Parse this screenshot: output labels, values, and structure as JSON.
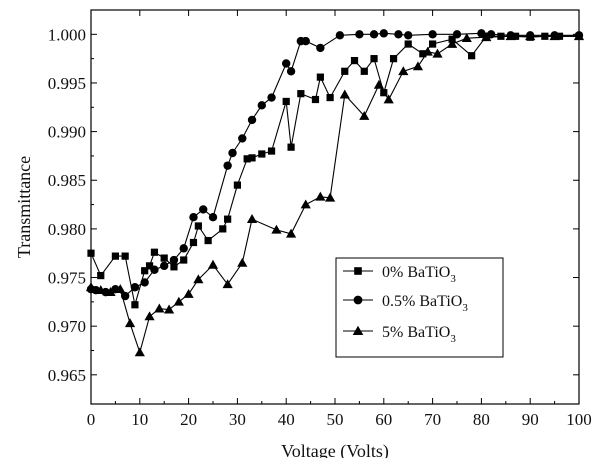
{
  "chart_data": {
    "type": "line",
    "xlabel": "Voltage (Volts)",
    "ylabel": "Transmittance",
    "xlim": [
      0,
      100
    ],
    "ylim": [
      0.962,
      1.0025
    ],
    "xticks": [
      0,
      10,
      20,
      30,
      40,
      50,
      60,
      70,
      80,
      90,
      100
    ],
    "xtick_labels": [
      "0",
      "10",
      "20",
      "30",
      "40",
      "50",
      "60",
      "70",
      "80",
      "90",
      "100"
    ],
    "yticks": [
      0.965,
      0.97,
      0.975,
      0.98,
      0.985,
      0.99,
      0.995,
      1.0
    ],
    "ytick_labels": [
      "0.965",
      "0.970",
      "0.975",
      "0.980",
      "0.985",
      "0.990",
      "0.995",
      "1.000"
    ],
    "grid": false,
    "legend_position": "lower-right",
    "color": "#000000",
    "series": [
      {
        "name_main": "0% BaTiO",
        "name_sub": "3",
        "marker": "square",
        "x": [
          0,
          2,
          5,
          7,
          9,
          11,
          12,
          13,
          15,
          17,
          19,
          21,
          22,
          24,
          27,
          28,
          30,
          32,
          33,
          35,
          37,
          40,
          41,
          43,
          46,
          47,
          49,
          52,
          54,
          56,
          58,
          60,
          62,
          65,
          68,
          70,
          74,
          78,
          81,
          84,
          87,
          90,
          93,
          96,
          100
        ],
        "y": [
          0.9775,
          0.9752,
          0.9772,
          0.9772,
          0.9722,
          0.9757,
          0.9762,
          0.9776,
          0.977,
          0.9761,
          0.9768,
          0.9786,
          0.9803,
          0.9788,
          0.98,
          0.981,
          0.9845,
          0.9872,
          0.9873,
          0.9877,
          0.988,
          0.9931,
          0.9884,
          0.9939,
          0.9933,
          0.9956,
          0.9935,
          0.9962,
          0.9973,
          0.9962,
          0.9975,
          0.994,
          0.9975,
          0.999,
          0.998,
          0.999,
          0.9995,
          0.9978,
          0.9998,
          0.9998,
          0.9998,
          0.9997,
          0.9998,
          0.9998,
          0.9998
        ]
      },
      {
        "name_main": "0.5% BaTiO",
        "name_sub": "3",
        "marker": "circle",
        "x": [
          0,
          1,
          3,
          5,
          7,
          9,
          11,
          13,
          15,
          17,
          19,
          21,
          23,
          25,
          28,
          29,
          31,
          33,
          35,
          37,
          40,
          41,
          43,
          44,
          47,
          51,
          55,
          58,
          60,
          63,
          65,
          70,
          75,
          80,
          82,
          86,
          90,
          95,
          100
        ],
        "y": [
          0.9738,
          0.9737,
          0.9735,
          0.9738,
          0.9731,
          0.974,
          0.9745,
          0.9758,
          0.9762,
          0.9768,
          0.978,
          0.9812,
          0.982,
          0.9812,
          0.9865,
          0.9878,
          0.9893,
          0.9912,
          0.9927,
          0.9935,
          0.997,
          0.9962,
          0.9993,
          0.9993,
          0.9986,
          0.9999,
          1.0,
          1.0,
          1.0001,
          1.0,
          0.9999,
          1.0,
          1.0,
          1.0001,
          1.0,
          0.9999,
          0.9999,
          0.9999,
          0.9999
        ]
      },
      {
        "name_main": "5% BaTiO",
        "name_sub": "3",
        "marker": "triangle",
        "x": [
          0,
          2,
          4,
          6,
          8,
          10,
          12,
          14,
          16,
          18,
          20,
          22,
          25,
          28,
          31,
          33,
          38,
          41,
          44,
          47,
          49,
          52,
          56,
          59,
          61,
          64,
          67,
          69,
          71,
          74,
          77,
          81,
          86,
          90,
          95,
          100
        ],
        "y": [
          0.974,
          0.9737,
          0.9735,
          0.9738,
          0.9703,
          0.9673,
          0.971,
          0.9718,
          0.9717,
          0.9725,
          0.9733,
          0.9748,
          0.9763,
          0.9743,
          0.9765,
          0.981,
          0.9799,
          0.9795,
          0.9825,
          0.9833,
          0.9832,
          0.9938,
          0.9916,
          0.9948,
          0.9933,
          0.9962,
          0.9967,
          0.9982,
          0.998,
          0.999,
          0.9996,
          0.9997,
          0.9998,
          0.9998,
          0.9998,
          0.9998
        ]
      }
    ]
  }
}
